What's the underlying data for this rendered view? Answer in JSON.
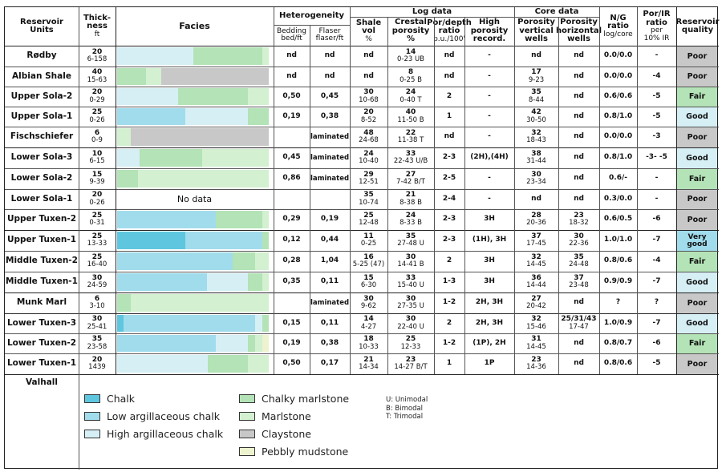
{
  "colors": {
    "chalk": "#5fc6df",
    "low_arg_chalk": "#a1dcec",
    "high_arg_chalk": "#d6eff5",
    "chalky_marlstone": "#b3e3b6",
    "marlstone": "#d3f0d1",
    "claystone": "#c8c8c8",
    "pebbly_mudstone": "#eef3cf",
    "quality_poor": "#c8c8c8",
    "quality_fair": "#b3e3b6",
    "quality_good": "#d6eff5",
    "quality_very_good": "#a1dcec"
  },
  "header": {
    "units": [
      "Reservoir",
      "Units"
    ],
    "thickness": [
      "Thick-",
      "ness",
      "ft"
    ],
    "facies": "Facies",
    "heterogeneity": "Heterogeneity",
    "bedding": [
      "Bedding",
      "bed/ft"
    ],
    "flaser": [
      "Flaser",
      "flaser/ft"
    ],
    "log_data": "Log data",
    "shale_vol": [
      "Shale vol",
      "%"
    ],
    "crestal": [
      "Crestal",
      "porosity",
      "%"
    ],
    "por_depth": [
      "Por/depth",
      "ratio",
      "p.u./100'"
    ],
    "high_por": [
      "High",
      "porosity",
      "record."
    ],
    "core_data": "Core data",
    "por_vert": [
      "Porosity",
      "vertical",
      "wells"
    ],
    "por_horiz": [
      "Porosity",
      "horizontal",
      "wells"
    ],
    "ng": [
      "N/G",
      "ratio",
      "log/core"
    ],
    "porir": [
      "Por/IR",
      "ratio",
      "per",
      "10% IR"
    ],
    "quality": [
      "Reservoir",
      "quality"
    ]
  },
  "rows": [
    {
      "unit": "Rødby",
      "thick": "20",
      "thick_range": "6-158",
      "facies": [
        [
          "high_arg_chalk",
          50
        ],
        [
          "chalky_marlstone",
          46
        ],
        [
          "marlstone",
          4
        ]
      ],
      "no_data": "",
      "bedding": "nd",
      "flaser": "nd",
      "shale": "nd",
      "shale_range": "",
      "crestal": "14",
      "crestal_range": "0-23 UB",
      "pordepth": "nd",
      "highpor": "-",
      "porvert": "nd",
      "porvert_range": "",
      "porhoriz": "nd",
      "porhoriz_range": "",
      "ng": "0.0/0.0",
      "porir": "-",
      "quality": "Poor",
      "qcolor": "quality_poor"
    },
    {
      "unit": "Albian Shale",
      "thick": "40",
      "thick_range": "15-63",
      "facies": [
        [
          "chalky_marlstone",
          19
        ],
        [
          "marlstone",
          10
        ],
        [
          "claystone",
          71
        ]
      ],
      "no_data": "",
      "bedding": "nd",
      "flaser": "nd",
      "shale": "nd",
      "shale_range": "",
      "crestal": "8",
      "crestal_range": "0-25 B",
      "pordepth": "nd",
      "highpor": "-",
      "porvert": "17",
      "porvert_range": "9-23",
      "porhoriz": "nd",
      "porhoriz_range": "",
      "ng": "0.0/0.0",
      "porir": "-4",
      "quality": "Poor",
      "qcolor": "quality_poor"
    },
    {
      "unit": "Upper Sola-2",
      "thick": "20",
      "thick_range": "0-29",
      "facies": [
        [
          "high_arg_chalk",
          40
        ],
        [
          "chalky_marlstone",
          46
        ],
        [
          "marlstone",
          14
        ]
      ],
      "no_data": "",
      "bedding": "0,50",
      "flaser": "0,45",
      "shale": "30",
      "shale_range": "10-68",
      "crestal": "24",
      "crestal_range": "0-40 T",
      "pordepth": "2",
      "highpor": "-",
      "porvert": "35",
      "porvert_range": "8-44",
      "porhoriz": "nd",
      "porhoriz_range": "",
      "ng": "0.6/0.6",
      "porir": "-5",
      "quality": "Fair",
      "qcolor": "quality_fair"
    },
    {
      "unit": "Upper Sola-1",
      "thick": "25",
      "thick_range": "0-26",
      "facies": [
        [
          "low_arg_chalk",
          45
        ],
        [
          "high_arg_chalk",
          41
        ],
        [
          "chalky_marlstone",
          14
        ]
      ],
      "no_data": "",
      "bedding": "0,19",
      "flaser": "0,38",
      "shale": "20",
      "shale_range": "8-52",
      "crestal": "40",
      "crestal_range": "11-50 B",
      "pordepth": "1",
      "highpor": "-",
      "porvert": "42",
      "porvert_range": "30-50",
      "porhoriz": "nd",
      "porhoriz_range": "",
      "ng": "0.8/1.0",
      "porir": "-5",
      "quality": "Good",
      "qcolor": "quality_good"
    },
    {
      "unit": "Fischschiefer",
      "thick": "6",
      "thick_range": "0-9",
      "facies": [
        [
          "marlstone",
          9
        ],
        [
          "claystone",
          91
        ]
      ],
      "no_data": "",
      "bedding": "",
      "flaser": "laminated",
      "shale": "48",
      "shale_range": "24-68",
      "crestal": "22",
      "crestal_range": "11-38 T",
      "pordepth": "nd",
      "highpor": "-",
      "porvert": "32",
      "porvert_range": "18-43",
      "porhoriz": "nd",
      "porhoriz_range": "",
      "ng": "0.0/0.0",
      "porir": "-3",
      "quality": "Poor",
      "qcolor": "quality_poor"
    },
    {
      "unit": "Lower Sola-3",
      "thick": "10",
      "thick_range": "6-15",
      "facies": [
        [
          "high_arg_chalk",
          15
        ],
        [
          "chalky_marlstone",
          41
        ],
        [
          "marlstone",
          44
        ]
      ],
      "no_data": "",
      "bedding": "0,45",
      "flaser": "laminated",
      "shale": "24",
      "shale_range": "10-40",
      "crestal": "33",
      "crestal_range": "22-43 U/B",
      "pordepth": "2-3",
      "highpor": "(2H),(4H)",
      "porvert": "38",
      "porvert_range": "31-44",
      "porhoriz": "nd",
      "porhoriz_range": "",
      "ng": "0.8/1.0",
      "porir": "-3- -5",
      "quality": "Good",
      "qcolor": "quality_good"
    },
    {
      "unit": "Lower Sola-2",
      "thick": "15",
      "thick_range": "9-39",
      "facies": [
        [
          "chalky_marlstone",
          14
        ],
        [
          "marlstone",
          86
        ]
      ],
      "no_data": "",
      "bedding": "0,86",
      "flaser": "laminated",
      "shale": "29",
      "shale_range": "12-51",
      "crestal": "27",
      "crestal_range": "7-42 B/T",
      "pordepth": "2-5",
      "highpor": "-",
      "porvert": "30",
      "porvert_range": "23-34",
      "porhoriz": "nd",
      "porhoriz_range": "",
      "ng": "0.6/-",
      "porir": "-",
      "quality": "Fair",
      "qcolor": "quality_fair"
    },
    {
      "unit": "Lower Sola-1",
      "thick": "20",
      "thick_range": "0-26",
      "facies": [],
      "no_data": "No data",
      "bedding": "",
      "flaser": "",
      "shale": "35",
      "shale_range": "10-74",
      "crestal": "21",
      "crestal_range": "8-38 B",
      "pordepth": "2-4",
      "highpor": "-",
      "porvert": "nd",
      "porvert_range": "",
      "porhoriz": "nd",
      "porhoriz_range": "",
      "ng": "0.3/0.0",
      "porir": "-",
      "quality": "Poor",
      "qcolor": "quality_poor"
    },
    {
      "unit": "Upper Tuxen-2",
      "thick": "25",
      "thick_range": "0-31",
      "facies": [
        [
          "low_arg_chalk",
          65
        ],
        [
          "chalky_marlstone",
          31
        ],
        [
          "marlstone",
          4
        ]
      ],
      "no_data": "",
      "bedding": "0,29",
      "flaser": "0,19",
      "shale": "25",
      "shale_range": "12-48",
      "crestal": "24",
      "crestal_range": "8-33 B",
      "pordepth": "2-3",
      "highpor": "3H",
      "porvert": "28",
      "porvert_range": "20-36",
      "porhoriz": "23",
      "porhoriz_range": "18-32",
      "ng": "0.6/0.5",
      "porir": "-6",
      "quality": "Poor",
      "qcolor": "quality_poor"
    },
    {
      "unit": "Upper Tuxen-1",
      "thick": "25",
      "thick_range": "13-33",
      "facies": [
        [
          "chalk",
          45
        ],
        [
          "low_arg_chalk",
          51
        ],
        [
          "chalky_marlstone",
          4
        ]
      ],
      "no_data": "",
      "bedding": "0,12",
      "flaser": "0,44",
      "shale": "11",
      "shale_range": "0-25",
      "crestal": "35",
      "crestal_range": "27-48 U",
      "pordepth": "2-3",
      "highpor": "(1H), 3H",
      "porvert": "37",
      "porvert_range": "17-45",
      "porhoriz": "30",
      "porhoriz_range": "22-36",
      "ng": "1.0/1.0",
      "porir": "-7",
      "quality": "Very good",
      "qcolor": "quality_very_good"
    },
    {
      "unit": "Middle Tuxen-2",
      "thick": "25",
      "thick_range": "16-40",
      "facies": [
        [
          "low_arg_chalk",
          76
        ],
        [
          "chalky_marlstone",
          15
        ],
        [
          "marlstone",
          9
        ]
      ],
      "no_data": "",
      "bedding": "0,28",
      "flaser": "1,04",
      "shale": "16",
      "shale_range": "5-25 (47)",
      "crestal": "30",
      "crestal_range": "14-41 B",
      "pordepth": "2",
      "highpor": "3H",
      "porvert": "32",
      "porvert_range": "14-45",
      "porhoriz": "35",
      "porhoriz_range": "24-48",
      "ng": "0.8/0.6",
      "porir": "-4",
      "quality": "Fair",
      "qcolor": "quality_fair"
    },
    {
      "unit": "Middle Tuxen-1",
      "thick": "30",
      "thick_range": "24-59",
      "facies": [
        [
          "low_arg_chalk",
          59
        ],
        [
          "high_arg_chalk",
          27
        ],
        [
          "chalky_marlstone",
          10
        ],
        [
          "marlstone",
          4
        ]
      ],
      "no_data": "",
      "bedding": "0,35",
      "flaser": "0,11",
      "shale": "15",
      "shale_range": "6-30",
      "crestal": "33",
      "crestal_range": "15-40 U",
      "pordepth": "1-3",
      "highpor": "3H",
      "porvert": "36",
      "porvert_range": "14-44",
      "porhoriz": "37",
      "porhoriz_range": "23-48",
      "ng": "0.9/0.9",
      "porir": "-7",
      "quality": "Good",
      "qcolor": "quality_good"
    },
    {
      "unit": "Munk Marl",
      "thick": "6",
      "thick_range": "3-10",
      "facies": [
        [
          "chalky_marlstone",
          9
        ],
        [
          "marlstone",
          91
        ]
      ],
      "no_data": "",
      "bedding": "",
      "flaser": "laminated",
      "shale": "30",
      "shale_range": "9-62",
      "crestal": "30",
      "crestal_range": "27-35 U",
      "pordepth": "1-2",
      "highpor": "2H, 3H",
      "porvert": "27",
      "porvert_range": "20-42",
      "porhoriz": "nd",
      "porhoriz_range": "",
      "ng": "?",
      "porir": "?",
      "quality": "Poor",
      "qcolor": "quality_poor"
    },
    {
      "unit": "Lower Tuxen-3",
      "thick": "30",
      "thick_range": "25-41",
      "facies": [
        [
          "chalk",
          4
        ],
        [
          "low_arg_chalk",
          87
        ],
        [
          "high_arg_chalk",
          5
        ],
        [
          "chalky_marlstone",
          4
        ]
      ],
      "no_data": "",
      "bedding": "0,15",
      "flaser": "0,11",
      "shale": "14",
      "shale_range": "4-27",
      "crestal": "30",
      "crestal_range": "22-40 U",
      "pordepth": "2",
      "highpor": "2H, 3H",
      "porvert": "32",
      "porvert_range": "15-46",
      "porhoriz": "25/31/43",
      "porhoriz_range": "17-47",
      "ng": "1.0/0.9",
      "porir": "-7",
      "quality": "Good",
      "qcolor": "quality_good"
    },
    {
      "unit": "Lower Tuxen-2",
      "thick": "35",
      "thick_range": "23-58",
      "facies": [
        [
          "low_arg_chalk",
          65
        ],
        [
          "high_arg_chalk",
          21
        ],
        [
          "chalky_marlstone",
          5
        ],
        [
          "marlstone",
          5
        ],
        [
          "pebbly_mudstone",
          4
        ]
      ],
      "no_data": "",
      "bedding": "0,19",
      "flaser": "0,38",
      "shale": "18",
      "shale_range": "10-33",
      "crestal": "25",
      "crestal_range": "12-33",
      "pordepth": "1-2",
      "highpor": "(1P), 2H",
      "porvert": "31",
      "porvert_range": "14-45",
      "porhoriz": "nd",
      "porhoriz_range": "",
      "ng": "0.8/0.7",
      "porir": "-6",
      "quality": "Fair",
      "qcolor": "quality_fair"
    },
    {
      "unit": "Lower Tuxen-1",
      "thick": "20",
      "thick_range": "1439",
      "facies": [
        [
          "high_arg_chalk",
          60
        ],
        [
          "chalky_marlstone",
          26
        ],
        [
          "marlstone",
          14
        ]
      ],
      "no_data": "",
      "bedding": "0,50",
      "flaser": "0,17",
      "shale": "21",
      "shale_range": "14-34",
      "crestal": "23",
      "crestal_range": "14-27 B/T",
      "pordepth": "1",
      "highpor": "1P",
      "porvert": "23",
      "porvert_range": "14-36",
      "porhoriz": "nd",
      "porhoriz_range": "",
      "ng": "0.8/0.6",
      "porir": "-5",
      "quality": "Poor",
      "qcolor": "quality_poor"
    }
  ],
  "footer": {
    "field": "Valhall",
    "legend": [
      {
        "label": "Chalk",
        "key": "chalk"
      },
      {
        "label": "Low argillaceous chalk",
        "key": "low_arg_chalk"
      },
      {
        "label": "High argillaceous chalk",
        "key": "high_arg_chalk"
      },
      {
        "label": "Chalky marlstone",
        "key": "chalky_marlstone"
      },
      {
        "label": "Marlstone",
        "key": "marlstone"
      },
      {
        "label": "Claystone",
        "key": "claystone"
      },
      {
        "label": "Pebbly mudstone",
        "key": "pebbly_mudstone"
      }
    ],
    "notes": [
      "U: Unimodal",
      "B: Bimodal",
      "T: Trimodal"
    ]
  }
}
